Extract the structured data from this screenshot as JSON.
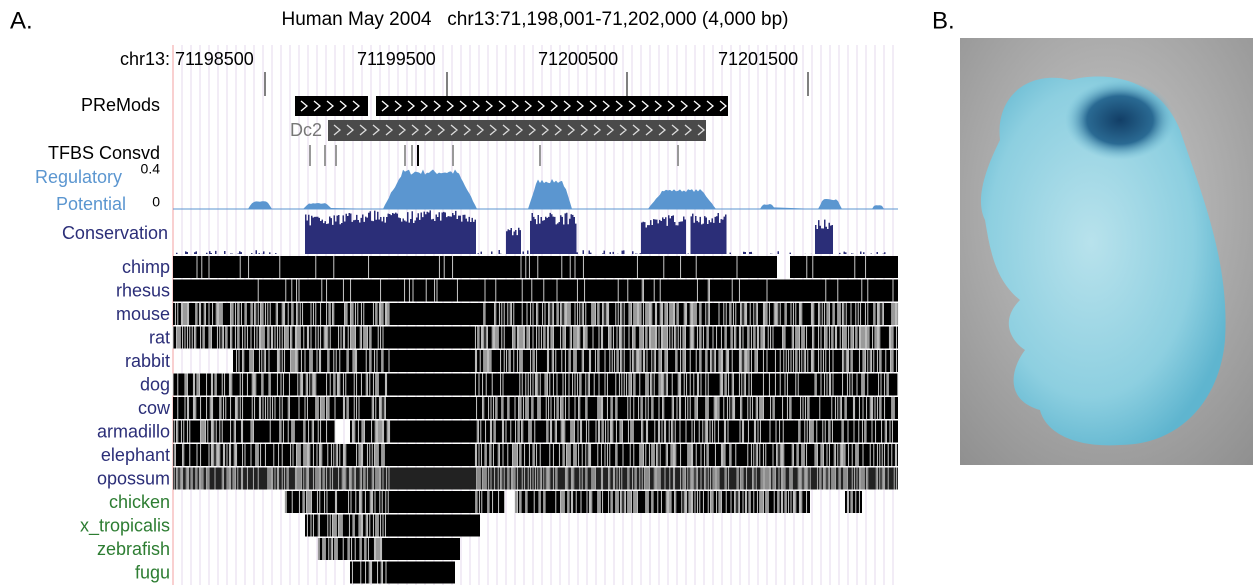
{
  "panel_a": {
    "label": "A.",
    "header": "Human May 2004   chr13:71,198,001-71,202,000 (4,000 bp)",
    "ruler": {
      "label": "chr13:",
      "positions": [
        "71198500",
        "71199500",
        "71200500",
        "71201500"
      ]
    },
    "tracks": {
      "premods": "PReMods",
      "dc2": "Dc2",
      "tfbs": "TFBS Consvd",
      "reg_top": "0.4",
      "reg_zero": "0",
      "regulatory": [
        "Regulatory",
        "Potential"
      ],
      "conservation": "Conservation"
    },
    "species": [
      "chimp",
      "rhesus",
      "mouse",
      "rat",
      "rabbit",
      "dog",
      "cow",
      "armadillo",
      "elephant",
      "opossum",
      "chicken",
      "x_tropicalis",
      "zebrafish",
      "fugu"
    ]
  },
  "panel_b": {
    "label": "B."
  }
}
